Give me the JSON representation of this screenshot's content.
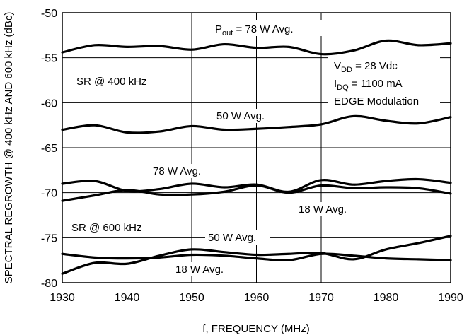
{
  "chart_data": {
    "type": "line",
    "title": "",
    "xlabel": "f, FREQUENCY (MHz)",
    "ylabel": "SPECTRAL REGROWTH @ 400 kHz AND 600 kHz (dBc)",
    "xlim": [
      1930,
      1990
    ],
    "ylim": [
      -80,
      -50
    ],
    "xticks": [
      1930,
      1940,
      1950,
      1960,
      1970,
      1980,
      1990
    ],
    "yticks": [
      -50,
      -55,
      -60,
      -65,
      -70,
      -75,
      -80
    ],
    "grid": true,
    "series": [
      {
        "name": "SR @ 400 kHz, P_out = 78 W Avg.",
        "x": [
          1930,
          1935,
          1940,
          1945,
          1950,
          1955,
          1960,
          1965,
          1970,
          1975,
          1980,
          1985,
          1990
        ],
        "y": [
          -54.4,
          -53.6,
          -53.8,
          -53.7,
          -54.1,
          -53.5,
          -53.9,
          -53.8,
          -54.6,
          -54.2,
          -53.1,
          -53.6,
          -53.4
        ]
      },
      {
        "name": "SR @ 400 kHz, 50 W Avg.",
        "x": [
          1930,
          1935,
          1940,
          1945,
          1950,
          1955,
          1960,
          1965,
          1970,
          1975,
          1980,
          1985,
          1990
        ],
        "y": [
          -63.0,
          -62.5,
          -63.3,
          -63.2,
          -62.6,
          -63.0,
          -62.9,
          -62.7,
          -62.4,
          -61.5,
          -62.0,
          -62.3,
          -61.6
        ]
      },
      {
        "name": "SR @ 400 kHz, 18 W Avg.",
        "x": [
          1930,
          1935,
          1940,
          1945,
          1950,
          1955,
          1960,
          1965,
          1970,
          1975,
          1980,
          1985,
          1990
        ],
        "y": [
          -69.0,
          -68.7,
          -69.8,
          -69.6,
          -69.0,
          -69.4,
          -69.1,
          -69.9,
          -68.6,
          -69.1,
          -68.7,
          -68.5,
          -68.9
        ]
      },
      {
        "name": "SR @ 600 kHz, 78 W Avg.",
        "x": [
          1930,
          1935,
          1940,
          1945,
          1950,
          1955,
          1960,
          1965,
          1970,
          1975,
          1980,
          1985,
          1990
        ],
        "y": [
          -70.9,
          -70.3,
          -69.7,
          -70.2,
          -70.2,
          -69.9,
          -69.2,
          -70.0,
          -69.2,
          -69.5,
          -69.4,
          -69.5,
          -70.1
        ]
      },
      {
        "name": "SR @ 600 kHz, 50 W Avg.",
        "x": [
          1930,
          1935,
          1940,
          1945,
          1950,
          1955,
          1960,
          1965,
          1970,
          1975,
          1980,
          1985,
          1990
        ],
        "y": [
          -79.0,
          -77.8,
          -77.9,
          -77.0,
          -76.3,
          -76.6,
          -76.9,
          -76.8,
          -76.7,
          -77.4,
          -76.3,
          -75.6,
          -74.8
        ]
      },
      {
        "name": "SR @ 600 kHz, 18 W Avg.",
        "x": [
          1930,
          1935,
          1940,
          1945,
          1950,
          1955,
          1960,
          1965,
          1970,
          1975,
          1980,
          1985,
          1990
        ],
        "y": [
          -76.8,
          -77.2,
          -77.3,
          -77.2,
          -76.9,
          -77.0,
          -77.3,
          -77.5,
          -76.8,
          -77.0,
          -77.3,
          -77.4,
          -77.5
        ]
      }
    ],
    "annotations": {
      "pout_main": "P",
      "pout_sub": "out",
      "pout_rest": " = 78 W Avg.",
      "sr400": "SR @ 400 kHz",
      "sr600": "SR @ 600 kHz",
      "w50_upper": "50 W Avg.",
      "w78_lower": "78 W Avg.",
      "w18_upper": "18 W Avg.",
      "w50_lower": "50 W Avg.",
      "w18_lower": "18 W Avg.",
      "vdd_main": "V",
      "vdd_sub": "DD",
      "vdd_rest": " = 28 Vdc",
      "idq_main": "I",
      "idq_sub": "DQ",
      "idq_rest": " = 1100 mA",
      "modulation": "EDGE Modulation"
    }
  }
}
